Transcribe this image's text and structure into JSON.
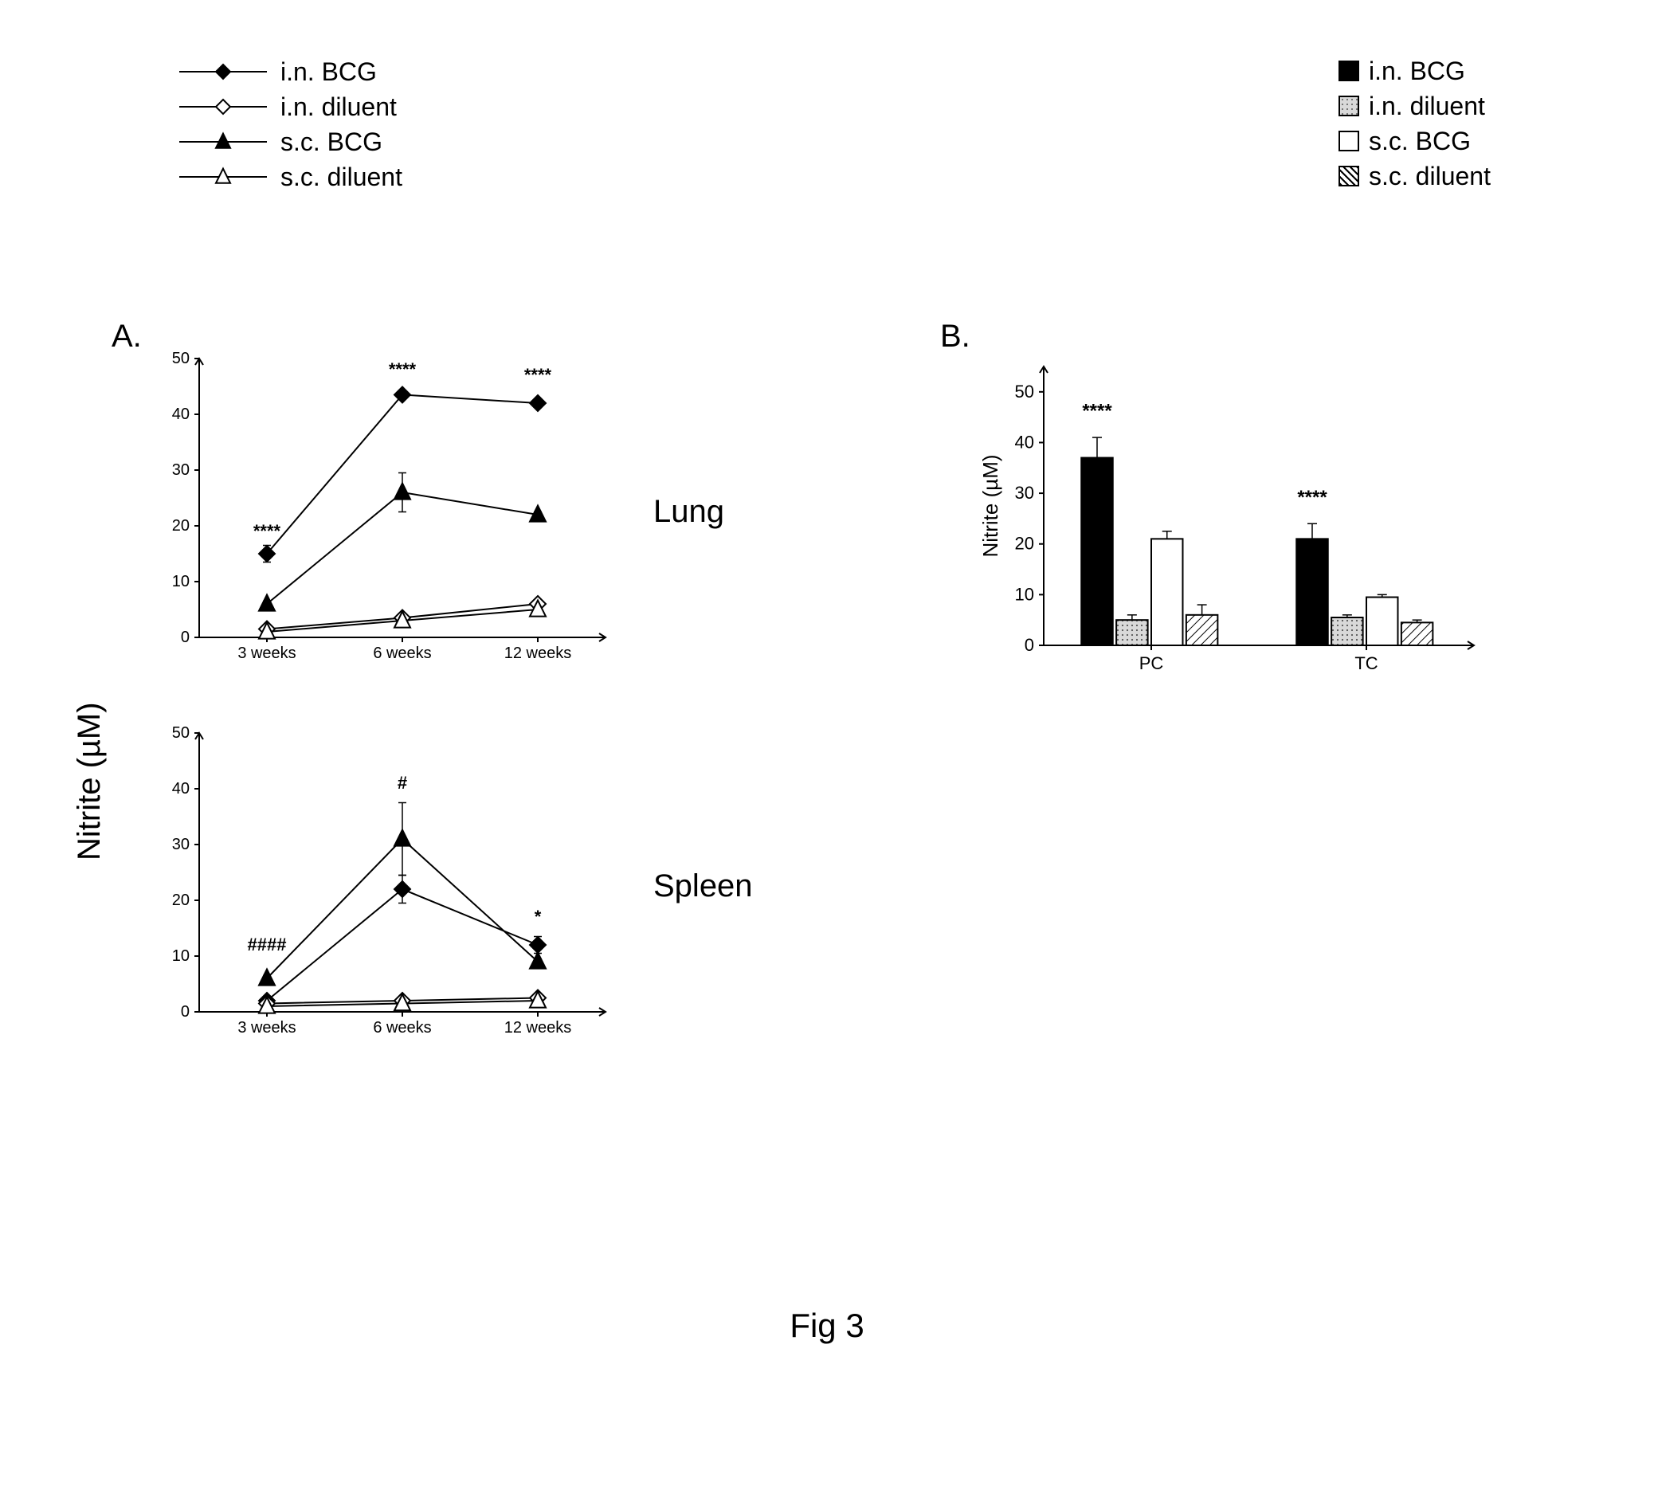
{
  "figure_caption": "Fig 3",
  "panelA": {
    "label": "A.",
    "global_ylabel": "Nitrite (µM)",
    "legend": [
      {
        "marker": "diamond",
        "fill": "#000000",
        "stroke": "#000000",
        "label": "i.n. BCG"
      },
      {
        "marker": "diamond",
        "fill": "#ffffff",
        "stroke": "#000000",
        "label": "i.n. diluent"
      },
      {
        "marker": "triangle",
        "fill": "#000000",
        "stroke": "#000000",
        "label": "s.c. BCG"
      },
      {
        "marker": "triangle",
        "fill": "#ffffff",
        "stroke": "#000000",
        "label": "s.c. diluent"
      }
    ],
    "charts": {
      "lung": {
        "title": "Lung",
        "x_categories": [
          "3 weeks",
          "6 weeks",
          "12 weeks"
        ],
        "ylim": [
          0,
          50
        ],
        "ytick_step": 10,
        "line_width": 2,
        "marker_size": 10,
        "series": [
          {
            "name": "i.n. BCG",
            "marker": "diamond",
            "fill": "#000000",
            "stroke": "#000000",
            "y": [
              15,
              43.5,
              42
            ],
            "err": [
              1.5,
              0,
              0
            ]
          },
          {
            "name": "s.c. BCG",
            "marker": "triangle",
            "fill": "#000000",
            "stroke": "#000000",
            "y": [
              6,
              26,
              22
            ],
            "err": [
              0.5,
              3.5,
              0.5
            ]
          },
          {
            "name": "i.n. diluent",
            "marker": "diamond",
            "fill": "#ffffff",
            "stroke": "#000000",
            "y": [
              1.5,
              3.5,
              6
            ],
            "err": [
              0,
              0.5,
              0.5
            ]
          },
          {
            "name": "s.c. diluent",
            "marker": "triangle",
            "fill": "#ffffff",
            "stroke": "#000000",
            "y": [
              1,
              3,
              5
            ],
            "err": [
              0,
              0.5,
              0.5
            ]
          }
        ],
        "annotations": [
          {
            "text": "****",
            "xi": 0,
            "y": 18
          },
          {
            "text": "****",
            "xi": 1,
            "y": 47
          },
          {
            "text": "****",
            "xi": 2,
            "y": 46
          }
        ],
        "axis_color": "#000000",
        "tick_font_size": 20,
        "annot_font_size": 22,
        "background_color": "#ffffff"
      },
      "spleen": {
        "title": "Spleen",
        "x_categories": [
          "3 weeks",
          "6 weeks",
          "12 weeks"
        ],
        "ylim": [
          0,
          50
        ],
        "ytick_step": 10,
        "line_width": 2,
        "marker_size": 10,
        "series": [
          {
            "name": "s.c. BCG",
            "marker": "triangle",
            "fill": "#000000",
            "stroke": "#000000",
            "y": [
              6,
              31,
              9
            ],
            "err": [
              0.5,
              6.5,
              0.5
            ]
          },
          {
            "name": "i.n. BCG",
            "marker": "diamond",
            "fill": "#000000",
            "stroke": "#000000",
            "y": [
              2,
              22,
              12
            ],
            "err": [
              0.5,
              2.5,
              1.5
            ]
          },
          {
            "name": "i.n. diluent",
            "marker": "diamond",
            "fill": "#ffffff",
            "stroke": "#000000",
            "y": [
              1.5,
              2,
              2.5
            ],
            "err": [
              0,
              0,
              0.5
            ]
          },
          {
            "name": "s.c. diluent",
            "marker": "triangle",
            "fill": "#ffffff",
            "stroke": "#000000",
            "y": [
              1,
              1.5,
              2
            ],
            "err": [
              0,
              0,
              0.5
            ]
          }
        ],
        "annotations": [
          {
            "text": "####",
            "xi": 0,
            "y": 11
          },
          {
            "text": "#",
            "xi": 1,
            "y": 40
          },
          {
            "text": "*",
            "xi": 2,
            "y": 16
          }
        ],
        "axis_color": "#000000",
        "tick_font_size": 20,
        "annot_font_size": 22,
        "background_color": "#ffffff"
      }
    }
  },
  "panelB": {
    "label": "B.",
    "legend": [
      {
        "pattern": "solid",
        "fill": "#000000",
        "label": "i.n. BCG"
      },
      {
        "pattern": "dots",
        "fill": "#bfbfbf",
        "label": "i.n. diluent"
      },
      {
        "pattern": "open",
        "fill": "#ffffff",
        "label": "s.c. BCG"
      },
      {
        "pattern": "hatch",
        "fill": "#ffffff",
        "label": "s.c. diluent"
      }
    ],
    "chart": {
      "type": "bar",
      "groups": [
        "PC",
        "TC"
      ],
      "series_order": [
        "i.n. BCG",
        "i.n. diluent",
        "s.c. BCG",
        "s.c. diluent"
      ],
      "ylabel": "Nitrite (µM)",
      "ylim": [
        0,
        55
      ],
      "ytick_step": 10,
      "yticks_max_label": 50,
      "bar_width": 0.18,
      "group_gap": 0.35,
      "colors": {
        "i.n. BCG": {
          "fill": "#000000",
          "pattern": "solid"
        },
        "i.n. diluent": {
          "fill": "#bfbfbf",
          "pattern": "dots"
        },
        "s.c. BCG": {
          "fill": "#ffffff",
          "pattern": "open"
        },
        "s.c. diluent": {
          "fill": "#ffffff",
          "pattern": "hatch"
        }
      },
      "values": {
        "PC": {
          "i.n. BCG": 37,
          "i.n. diluent": 5,
          "s.c. BCG": 21,
          "s.c. diluent": 6
        },
        "TC": {
          "i.n. BCG": 21,
          "i.n. diluent": 5.5,
          "s.c. BCG": 9.5,
          "s.c. diluent": 4.5
        }
      },
      "errors": {
        "PC": {
          "i.n. BCG": 4,
          "i.n. diluent": 1,
          "s.c. BCG": 1.5,
          "s.c. diluent": 2
        },
        "TC": {
          "i.n. BCG": 3,
          "i.n. diluent": 0.5,
          "s.c. BCG": 0.5,
          "s.c. diluent": 0.5
        }
      },
      "annotations": [
        {
          "text": "****",
          "group": "PC",
          "series": "i.n. BCG",
          "y": 45
        },
        {
          "text": "****",
          "group": "TC",
          "series": "i.n. BCG",
          "y": 28
        }
      ],
      "axis_color": "#000000",
      "tick_font_size": 22,
      "label_font_size": 26,
      "annot_font_size": 24,
      "background_color": "#ffffff"
    }
  }
}
